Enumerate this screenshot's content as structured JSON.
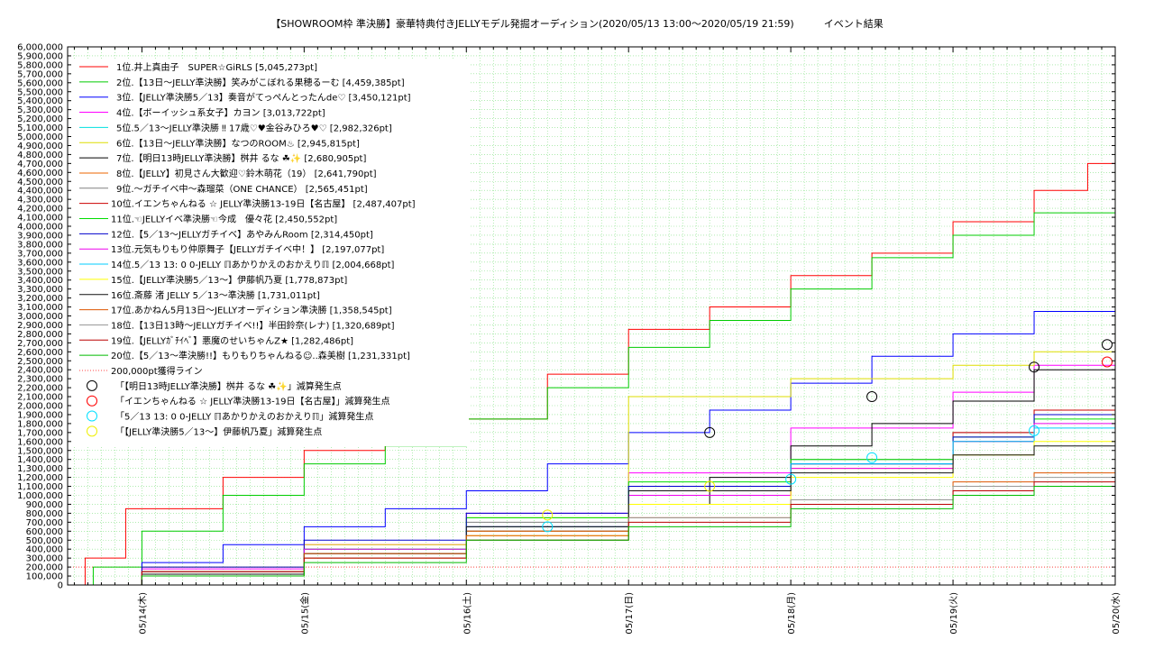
{
  "chart_data": {
    "type": "line",
    "title": "【SHOWROOM枠 準決勝】豪華特典付きJELLYモデル発掘オーディション(2020/05/13 13:00～2020/05/19 21:59)　　　イベント結果",
    "xlabel": "",
    "ylabel": "",
    "ylim": [
      0,
      6000000
    ],
    "y_tick_step": 100000,
    "x_ticks": [
      "05/14(木)",
      "05/15(金)",
      "05/16(土)",
      "05/17(日)",
      "05/18(月)",
      "05/19(火)",
      "05/20(水)"
    ],
    "x_range_days": [
      -0.458,
      6.0
    ],
    "grid": true,
    "legend_position": "top-left",
    "threshold": {
      "label": "200,000pt獲得ライン",
      "value": 200000,
      "color": "#ff4444"
    },
    "series": [
      {
        "rank": "1位.",
        "name": "井上真由子　SUPER☆GiRLS",
        "final": "[5,045,273pt]",
        "color": "#ff0000",
        "x": [
          -0.458,
          -0.35,
          -0.1,
          0.0,
          0.5,
          1.0,
          1.5,
          2.0,
          2.5,
          3.0,
          3.5,
          4.0,
          4.5,
          5.0,
          5.5,
          5.83,
          6.0
        ],
        "y": [
          0,
          300000,
          850000,
          850000,
          1200000,
          1500000,
          1650000,
          1850000,
          2350000,
          2850000,
          3100000,
          3450000,
          3700000,
          4050000,
          4400000,
          4700000,
          5045273
        ]
      },
      {
        "rank": "2位.",
        "name": "【13日～JELLY準決勝】笑みがこぼれる果穂るーむ",
        "final": "[4,459,385pt]",
        "color": "#00cc00",
        "x": [
          -0.458,
          -0.3,
          0.0,
          0.5,
          1.0,
          1.5,
          2.0,
          2.5,
          3.0,
          3.5,
          4.0,
          4.5,
          5.0,
          5.5,
          6.0
        ],
        "y": [
          0,
          200000,
          600000,
          1000000,
          1350000,
          1550000,
          1850000,
          2200000,
          2650000,
          2950000,
          3300000,
          3650000,
          3900000,
          4150000,
          4459385
        ]
      },
      {
        "rank": "3位.",
        "name": "【JELLY準決勝5／13】奏音がてっぺんとったんde♡",
        "final": "[3,450,121pt]",
        "color": "#0000ff",
        "x": [
          -0.458,
          0.0,
          0.5,
          1.0,
          1.5,
          2.0,
          2.5,
          3.0,
          3.5,
          4.0,
          4.5,
          5.0,
          5.5,
          6.0
        ],
        "y": [
          0,
          250000,
          450000,
          650000,
          850000,
          1050000,
          1350000,
          1700000,
          1950000,
          2250000,
          2550000,
          2800000,
          3050000,
          3450121
        ]
      },
      {
        "rank": "4位.",
        "name": "【ボーイッシュ系女子】カヨン",
        "final": "[3,013,722pt]",
        "color": "#ff00ff",
        "x": [
          -0.458,
          0.0,
          1.0,
          2.0,
          3.0,
          4.0,
          5.0,
          5.5,
          6.0
        ],
        "y": [
          0,
          180000,
          450000,
          800000,
          1250000,
          1750000,
          2150000,
          2450000,
          3013722
        ]
      },
      {
        "rank": "5位.",
        "name": "5／13～JELLY準決勝 ‼ 17歳♡♥金谷みひろ♥♡",
        "final": "[2,982,326pt]",
        "color": "#00e0e0",
        "x": [
          -0.458,
          0.0,
          1.0,
          2.0,
          3.0,
          4.0,
          5.0,
          5.5,
          6.0
        ],
        "y": [
          0,
          150000,
          400000,
          650000,
          1000000,
          1350000,
          1600000,
          1900000,
          2982326
        ]
      },
      {
        "rank": "6位.",
        "name": "【13日～JELLY準決勝】なつのROOM♨",
        "final": "[2,945,815pt]",
        "color": "#dddd00",
        "x": [
          -0.458,
          0.0,
          1.0,
          2.0,
          3.0,
          4.0,
          5.0,
          5.5,
          6.0
        ],
        "y": [
          0,
          200000,
          450000,
          750000,
          2100000,
          2300000,
          2450000,
          2600000,
          2945815
        ]
      },
      {
        "rank": "7位.",
        "name": "【明日13時JELLY準決勝】桝井 るな ☘✨",
        "final": "[2,680,905pt]",
        "color": "#000000",
        "x": [
          -0.458,
          0.0,
          1.0,
          2.0,
          3.0,
          3.5,
          4.0,
          4.5,
          5.0,
          5.5,
          6.0
        ],
        "y": [
          0,
          150000,
          350000,
          600000,
          900000,
          1200000,
          1550000,
          1800000,
          2050000,
          2400000,
          2680905
        ]
      },
      {
        "rank": "8位.",
        "name": "【JELLY】初見さん大歓迎♡鈴木萌花（19）",
        "final": "[2,641,790pt]",
        "color": "#ee6600",
        "x": [
          -0.458,
          0.0,
          1.0,
          2.0,
          3.0,
          4.0,
          5.0,
          5.5,
          6.0
        ],
        "y": [
          0,
          150000,
          300000,
          600000,
          1000000,
          1300000,
          1600000,
          1900000,
          2641790
        ]
      },
      {
        "rank": "9位.",
        "name": "～ガチイベ中～森瑠菜（ONE CHANCE）",
        "final": "[2,565,451pt]",
        "color": "#808080",
        "x": [
          -0.458,
          0.0,
          1.0,
          2.0,
          3.0,
          4.0,
          5.0,
          5.5,
          6.0
        ],
        "y": [
          0,
          150000,
          350000,
          700000,
          1100000,
          1400000,
          1700000,
          1950000,
          2565451
        ]
      },
      {
        "rank": "10位.",
        "name": "イエンちゃんねる ☆ JELLY準決勝13-19日【名古屋】",
        "final": "[2,487,407pt]",
        "color": "#cc0000",
        "x": [
          -0.458,
          0.0,
          1.0,
          2.0,
          3.0,
          4.0,
          5.0,
          5.5,
          6.0
        ],
        "y": [
          0,
          100000,
          350000,
          650000,
          1000000,
          1350000,
          1700000,
          1950000,
          2487407
        ]
      },
      {
        "rank": "11位.",
        "name": "☜JELLYイベ準決勝☜今成　優々花",
        "final": "[2,450,552pt]",
        "color": "#00dd00",
        "x": [
          -0.458,
          0.0,
          1.0,
          2.0,
          3.0,
          4.0,
          5.0,
          5.5,
          6.0
        ],
        "y": [
          0,
          150000,
          400000,
          750000,
          1150000,
          1400000,
          1650000,
          1850000,
          2450552
        ]
      },
      {
        "rank": "12位.",
        "name": "【5／13～JELLYガチイベ】あやみんRoom",
        "final": "[2,314,450pt]",
        "color": "#0000cc",
        "x": [
          -0.458,
          0.0,
          1.0,
          2.0,
          3.0,
          4.0,
          5.0,
          5.5,
          6.0
        ],
        "y": [
          0,
          200000,
          500000,
          800000,
          1100000,
          1350000,
          1650000,
          1900000,
          2314450
        ]
      },
      {
        "rank": "13位.",
        "name": "元気もりもり仲原舞子【JELLYガチイベ中！】",
        "final": "[2,197,077pt]",
        "color": "#ee00ee",
        "x": [
          -0.458,
          0.0,
          1.0,
          2.0,
          3.0,
          4.0,
          5.0,
          5.5,
          6.0
        ],
        "y": [
          0,
          150000,
          400000,
          650000,
          1000000,
          1300000,
          1600000,
          1800000,
          2197077
        ]
      },
      {
        "rank": "14位.",
        "name": "5／13 13: 0 0-JELLY ℿあかりかえのおかえりℿ",
        "final": "[2,004,668pt]",
        "color": "#00ccff",
        "x": [
          -0.458,
          0.0,
          1.0,
          2.0,
          3.0,
          4.0,
          5.0,
          5.5,
          6.0
        ],
        "y": [
          0,
          100000,
          350000,
          650000,
          1050000,
          1350000,
          1600000,
          1750000,
          2004668
        ]
      },
      {
        "rank": "15位.",
        "name": "【JELLY準決勝5／13～】伊藤帆乃夏",
        "final": "[1,778,873pt]",
        "color": "#ffff00",
        "x": [
          -0.458,
          0.0,
          1.0,
          2.0,
          3.0,
          4.0,
          5.0,
          5.5,
          6.0
        ],
        "y": [
          0,
          100000,
          300000,
          550000,
          900000,
          1200000,
          1450000,
          1600000,
          1778873
        ]
      },
      {
        "rank": "16位.",
        "name": "斎藤 渚 JELLY 5／13～準決勝",
        "final": "[1,731,011pt]",
        "color": "#111111",
        "x": [
          -0.458,
          0.0,
          1.0,
          2.0,
          3.0,
          4.0,
          5.0,
          5.5,
          6.0
        ],
        "y": [
          0,
          120000,
          350000,
          650000,
          1050000,
          1250000,
          1450000,
          1550000,
          1731011
        ]
      },
      {
        "rank": "17位.",
        "name": "あかねん5月13日～JELLYオーディション準決勝",
        "final": "[1,358,545pt]",
        "color": "#dd5500",
        "x": [
          -0.458,
          0.0,
          1.0,
          2.0,
          3.0,
          4.0,
          5.0,
          5.5,
          6.0
        ],
        "y": [
          0,
          150000,
          350000,
          550000,
          750000,
          950000,
          1150000,
          1250000,
          1358545
        ]
      },
      {
        "rank": "18位.",
        "name": "【13日13時～JELLYガチイベ!!】半田鈴奈(レナ)",
        "final": "[1,320,689pt]",
        "color": "#999999",
        "x": [
          -0.458,
          0.0,
          1.0,
          2.0,
          3.0,
          4.0,
          5.0,
          5.5,
          6.0
        ],
        "y": [
          0,
          150000,
          300000,
          500000,
          750000,
          950000,
          1100000,
          1200000,
          1320689
        ]
      },
      {
        "rank": "19位.",
        "name": "【JELLYｶﾞﾁｲﾍﾞ】悪魔のせいちゃんZ★",
        "final": "[1,282,486pt]",
        "color": "#bb0000",
        "x": [
          -0.458,
          0.0,
          1.0,
          2.0,
          3.0,
          4.0,
          5.0,
          5.5,
          6.0
        ],
        "y": [
          0,
          150000,
          300000,
          500000,
          700000,
          900000,
          1050000,
          1150000,
          1282486
        ]
      },
      {
        "rank": "20位.",
        "name": "【5／13～準決勝!!】もりもりちゃんねる☺..森美樹",
        "final": "[1,231,331pt]",
        "color": "#00bb00",
        "x": [
          -0.458,
          0.0,
          1.0,
          2.0,
          3.0,
          4.0,
          5.0,
          5.5,
          6.0
        ],
        "y": [
          0,
          100000,
          250000,
          500000,
          650000,
          850000,
          1000000,
          1100000,
          1231331
        ]
      }
    ],
    "markers": [
      {
        "label": "「【明日13時JELLY準決勝】桝井 るな ☘✨」減算発生点",
        "color": "#000000",
        "points": [
          [
            3.5,
            1700000
          ],
          [
            4.5,
            2100000
          ],
          [
            5.5,
            2430000
          ],
          [
            5.95,
            2680905
          ]
        ]
      },
      {
        "label": "「イエンちゃんねる ☆ JELLY準決勝13-19日【名古屋】」減算発生点",
        "color": "#ff0000",
        "points": [
          [
            5.95,
            2487407
          ]
        ]
      },
      {
        "label": "「5／13 13: 0 0-JELLY ℿあかりかえのおかえりℿ」減算発生点",
        "color": "#00e0ff",
        "points": [
          [
            2.5,
            650000
          ],
          [
            4.0,
            1180000
          ],
          [
            4.5,
            1420000
          ],
          [
            5.5,
            1720000
          ]
        ]
      },
      {
        "label": "「【JELLY準決勝5／13～】伊藤帆乃夏」減算発生点",
        "color": "#eeee00",
        "points": [
          [
            2.5,
            780000
          ],
          [
            3.5,
            1100000
          ]
        ]
      }
    ]
  }
}
